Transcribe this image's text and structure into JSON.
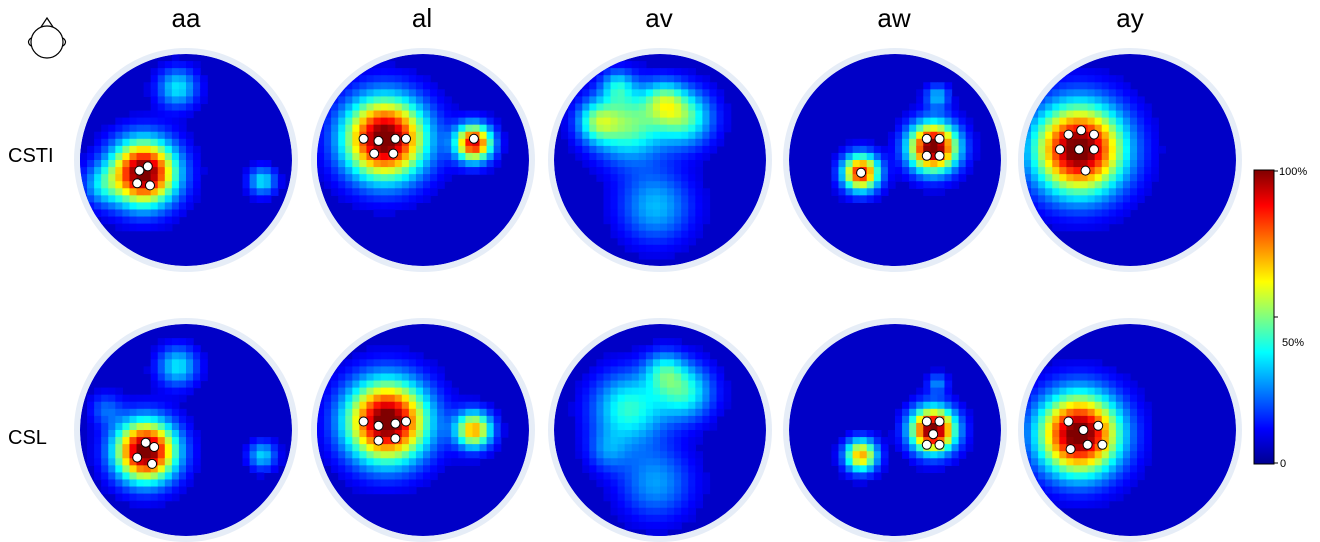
{
  "chart_data": {
    "type": "heatmap",
    "columns": [
      "aa",
      "al",
      "av",
      "aw",
      "ay"
    ],
    "rows": [
      "CSTI",
      "CSL"
    ],
    "colorbar": {
      "ticks": [
        {
          "value": 100,
          "label": "100%"
        },
        {
          "value": 50,
          "label": "50%"
        },
        {
          "value": 0,
          "label": "0"
        }
      ],
      "colormap": [
        "#00008f",
        "#0000ff",
        "#00ffff",
        "#ffff00",
        "#ff0000",
        "#800000"
      ]
    },
    "maps": [
      {
        "row": "CSTI",
        "column": "aa",
        "peaks": [
          {
            "u": 0.3,
            "v": 0.56,
            "r": 0.16,
            "i": 1.0
          },
          {
            "u": 0.46,
            "v": 0.16,
            "r": 0.1,
            "i": 0.3
          },
          {
            "u": 0.86,
            "v": 0.6,
            "r": 0.07,
            "i": 0.3
          },
          {
            "u": 0.1,
            "v": 0.62,
            "r": 0.1,
            "i": 0.2
          }
        ],
        "electrodes": [
          {
            "u": 0.28,
            "v": 0.55
          },
          {
            "u": 0.32,
            "v": 0.53
          },
          {
            "u": 0.27,
            "v": 0.61
          },
          {
            "u": 0.33,
            "v": 0.62
          }
        ]
      },
      {
        "row": "CSTI",
        "column": "al",
        "peaks": [
          {
            "u": 0.32,
            "v": 0.4,
            "r": 0.2,
            "i": 1.0
          },
          {
            "u": 0.74,
            "v": 0.42,
            "r": 0.09,
            "i": 0.85
          }
        ],
        "electrodes": [
          {
            "u": 0.22,
            "v": 0.4
          },
          {
            "u": 0.29,
            "v": 0.41
          },
          {
            "u": 0.37,
            "v": 0.4
          },
          {
            "u": 0.42,
            "v": 0.4
          },
          {
            "u": 0.27,
            "v": 0.47
          },
          {
            "u": 0.36,
            "v": 0.47
          },
          {
            "u": 0.74,
            "v": 0.4
          }
        ]
      },
      {
        "row": "CSTI",
        "column": "av",
        "peaks": [
          {
            "u": 0.35,
            "v": 0.33,
            "r": 0.18,
            "i": 0.42
          },
          {
            "u": 0.62,
            "v": 0.3,
            "r": 0.14,
            "i": 0.38
          },
          {
            "u": 0.2,
            "v": 0.32,
            "r": 0.1,
            "i": 0.3
          },
          {
            "u": 0.52,
            "v": 0.22,
            "r": 0.1,
            "i": 0.28
          },
          {
            "u": 0.48,
            "v": 0.72,
            "r": 0.18,
            "i": 0.25
          },
          {
            "u": 0.3,
            "v": 0.15,
            "r": 0.08,
            "i": 0.22
          }
        ],
        "electrodes": []
      },
      {
        "row": "CSTI",
        "column": "aw",
        "peaks": [
          {
            "u": 0.68,
            "v": 0.44,
            "r": 0.12,
            "i": 1.0
          },
          {
            "u": 0.34,
            "v": 0.56,
            "r": 0.09,
            "i": 0.82
          },
          {
            "u": 0.7,
            "v": 0.2,
            "r": 0.06,
            "i": 0.25
          }
        ],
        "electrodes": [
          {
            "u": 0.65,
            "v": 0.4
          },
          {
            "u": 0.71,
            "v": 0.4
          },
          {
            "u": 0.65,
            "v": 0.48
          },
          {
            "u": 0.71,
            "v": 0.48
          },
          {
            "u": 0.34,
            "v": 0.56
          }
        ]
      },
      {
        "row": "CSTI",
        "column": "ay",
        "peaks": [
          {
            "u": 0.26,
            "v": 0.45,
            "r": 0.22,
            "i": 1.0
          }
        ],
        "electrodes": [
          {
            "u": 0.21,
            "v": 0.38
          },
          {
            "u": 0.27,
            "v": 0.36
          },
          {
            "u": 0.33,
            "v": 0.38
          },
          {
            "u": 0.17,
            "v": 0.45
          },
          {
            "u": 0.26,
            "v": 0.45
          },
          {
            "u": 0.33,
            "v": 0.45
          },
          {
            "u": 0.29,
            "v": 0.55
          }
        ]
      },
      {
        "row": "CSL",
        "column": "aa",
        "peaks": [
          {
            "u": 0.31,
            "v": 0.6,
            "r": 0.15,
            "i": 1.0
          },
          {
            "u": 0.46,
            "v": 0.2,
            "r": 0.1,
            "i": 0.3
          },
          {
            "u": 0.86,
            "v": 0.62,
            "r": 0.07,
            "i": 0.28
          },
          {
            "u": 0.12,
            "v": 0.4,
            "r": 0.08,
            "i": 0.15
          }
        ],
        "electrodes": [
          {
            "u": 0.31,
            "v": 0.56
          },
          {
            "u": 0.35,
            "v": 0.58
          },
          {
            "u": 0.27,
            "v": 0.63
          },
          {
            "u": 0.34,
            "v": 0.66
          }
        ]
      },
      {
        "row": "CSL",
        "column": "al",
        "peaks": [
          {
            "u": 0.33,
            "v": 0.46,
            "r": 0.2,
            "i": 1.0
          },
          {
            "u": 0.74,
            "v": 0.5,
            "r": 0.09,
            "i": 0.65
          }
        ],
        "electrodes": [
          {
            "u": 0.22,
            "v": 0.46
          },
          {
            "u": 0.29,
            "v": 0.48
          },
          {
            "u": 0.37,
            "v": 0.47
          },
          {
            "u": 0.42,
            "v": 0.46
          },
          {
            "u": 0.29,
            "v": 0.55
          },
          {
            "u": 0.37,
            "v": 0.54
          }
        ]
      },
      {
        "row": "CSL",
        "column": "av",
        "peaks": [
          {
            "u": 0.35,
            "v": 0.4,
            "r": 0.18,
            "i": 0.36
          },
          {
            "u": 0.62,
            "v": 0.32,
            "r": 0.14,
            "i": 0.34
          },
          {
            "u": 0.52,
            "v": 0.22,
            "r": 0.1,
            "i": 0.25
          },
          {
            "u": 0.48,
            "v": 0.75,
            "r": 0.18,
            "i": 0.22
          },
          {
            "u": 0.25,
            "v": 0.6,
            "r": 0.1,
            "i": 0.15
          }
        ],
        "electrodes": []
      },
      {
        "row": "CSL",
        "column": "aw",
        "peaks": [
          {
            "u": 0.68,
            "v": 0.5,
            "r": 0.11,
            "i": 1.0
          },
          {
            "u": 0.34,
            "v": 0.62,
            "r": 0.08,
            "i": 0.65
          },
          {
            "u": 0.7,
            "v": 0.28,
            "r": 0.05,
            "i": 0.2
          }
        ],
        "electrodes": [
          {
            "u": 0.65,
            "v": 0.46
          },
          {
            "u": 0.71,
            "v": 0.46
          },
          {
            "u": 0.68,
            "v": 0.52
          },
          {
            "u": 0.65,
            "v": 0.57
          },
          {
            "u": 0.71,
            "v": 0.57
          }
        ]
      },
      {
        "row": "CSL",
        "column": "ay",
        "peaks": [
          {
            "u": 0.26,
            "v": 0.52,
            "r": 0.2,
            "i": 1.0
          }
        ],
        "electrodes": [
          {
            "u": 0.21,
            "v": 0.46
          },
          {
            "u": 0.28,
            "v": 0.5
          },
          {
            "u": 0.35,
            "v": 0.48
          },
          {
            "u": 0.3,
            "v": 0.57
          },
          {
            "u": 0.37,
            "v": 0.57
          },
          {
            "u": 0.22,
            "v": 0.59
          }
        ]
      }
    ]
  }
}
